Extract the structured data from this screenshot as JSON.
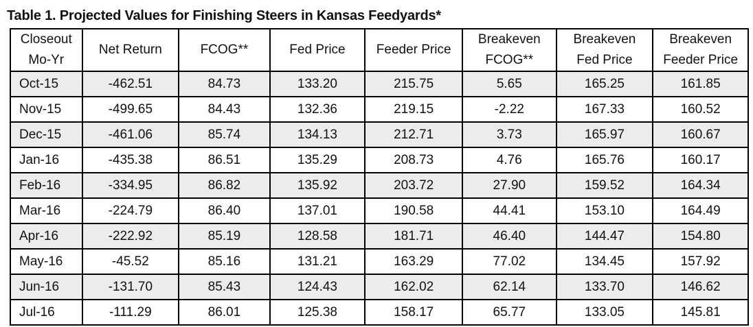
{
  "title": "Table 1. Projected Values for Finishing Steers in Kansas Feedyards*",
  "headers": [
    [
      "Closeout",
      "Mo-Yr"
    ],
    [
      "Net Return"
    ],
    [
      "FCOG**"
    ],
    [
      "Fed Price"
    ],
    [
      "Feeder Price"
    ],
    [
      "Breakeven",
      "FCOG**"
    ],
    [
      "Breakeven",
      "Fed Price"
    ],
    [
      "Breakeven",
      "Feeder Price"
    ]
  ],
  "rows": [
    [
      "Oct-15",
      "-462.51",
      "84.73",
      "133.20",
      "215.75",
      "5.65",
      "165.25",
      "161.85"
    ],
    [
      "Nov-15",
      "-499.65",
      "84.43",
      "132.36",
      "219.15",
      "-2.22",
      "167.33",
      "160.52"
    ],
    [
      "Dec-15",
      "-461.06",
      "85.74",
      "134.13",
      "212.71",
      "3.73",
      "165.97",
      "160.67"
    ],
    [
      "Jan-16",
      "-435.38",
      "86.51",
      "135.29",
      "208.73",
      "4.76",
      "165.76",
      "160.17"
    ],
    [
      "Feb-16",
      "-334.95",
      "86.82",
      "135.92",
      "203.72",
      "27.90",
      "159.52",
      "164.34"
    ],
    [
      "Mar-16",
      "-224.79",
      "86.40",
      "137.01",
      "190.58",
      "44.41",
      "153.10",
      "164.49"
    ],
    [
      "Apr-16",
      "-222.92",
      "85.19",
      "128.58",
      "181.71",
      "46.40",
      "144.47",
      "154.80"
    ],
    [
      "May-16",
      "-45.52",
      "85.16",
      "131.21",
      "163.29",
      "77.02",
      "134.45",
      "157.92"
    ],
    [
      "Jun-16",
      "-131.70",
      "85.43",
      "124.43",
      "162.02",
      "62.14",
      "133.70",
      "146.62"
    ],
    [
      "Jul-16",
      "-111.29",
      "86.01",
      "125.38",
      "158.17",
      "65.77",
      "133.05",
      "145.81"
    ]
  ],
  "colors": {
    "row_shade": "#ececec",
    "border": "#000000"
  }
}
